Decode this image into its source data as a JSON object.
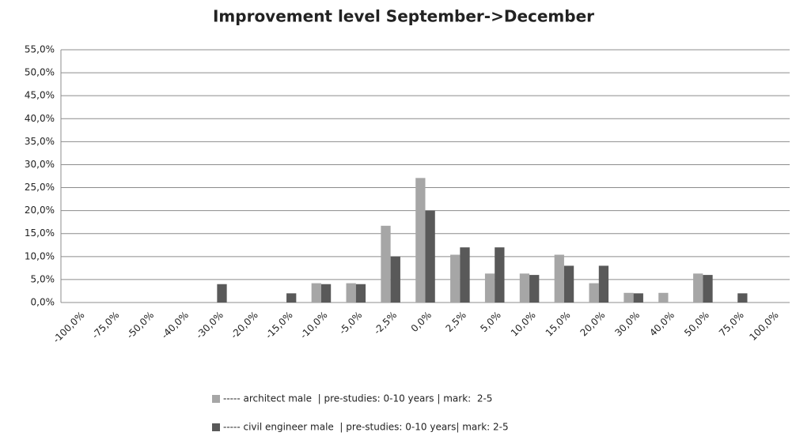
{
  "chart_data": {
    "type": "bar",
    "title": "Improvement level September->December",
    "categories": [
      "-100,0%",
      "-75,0%",
      "-50,0%",
      "-40,0%",
      "-30,0%",
      "-20,0%",
      "-15,0%",
      "-10,0%",
      "-5,0%",
      "-2,5%",
      "0,0%",
      "2,5%",
      "5,0%",
      "10,0%",
      "15,0%",
      "20,0%",
      "30,0%",
      "40,0%",
      "50,0%",
      "75,0%",
      "100,0%"
    ],
    "series": [
      {
        "name": "----- architect male  | pre-studies: 0-10 years | mark:  2-5",
        "color": "#a6a6a6",
        "values": [
          0,
          0,
          0,
          0,
          0,
          0,
          0,
          4.2,
          4.2,
          16.7,
          27.1,
          10.4,
          6.3,
          6.3,
          10.4,
          4.2,
          2.1,
          2.1,
          6.3,
          0,
          0
        ]
      },
      {
        "name": "----- civil engineer male  | pre-studies: 0-10 years| mark: 2-5",
        "color": "#595959",
        "values": [
          0,
          0,
          0,
          0,
          4,
          0,
          2,
          4,
          4,
          10,
          20,
          12,
          12,
          6,
          8,
          8,
          2,
          0,
          6,
          2,
          0
        ]
      }
    ],
    "ylim": [
      0,
      55
    ],
    "yticks": [
      {
        "value": 0,
        "label": "0,0%"
      },
      {
        "value": 5,
        "label": "5,0%"
      },
      {
        "value": 10,
        "label": "10,0%"
      },
      {
        "value": 15,
        "label": "15,0%"
      },
      {
        "value": 20,
        "label": "20,0%"
      },
      {
        "value": 25,
        "label": "25,0%"
      },
      {
        "value": 30,
        "label": "30,0%"
      },
      {
        "value": 35,
        "label": "35,0%"
      },
      {
        "value": 40,
        "label": "40,0%"
      },
      {
        "value": 45,
        "label": "45,0%"
      },
      {
        "value": 50,
        "label": "50,0%"
      },
      {
        "value": 55,
        "label": "55,0%"
      }
    ],
    "grid": true
  }
}
